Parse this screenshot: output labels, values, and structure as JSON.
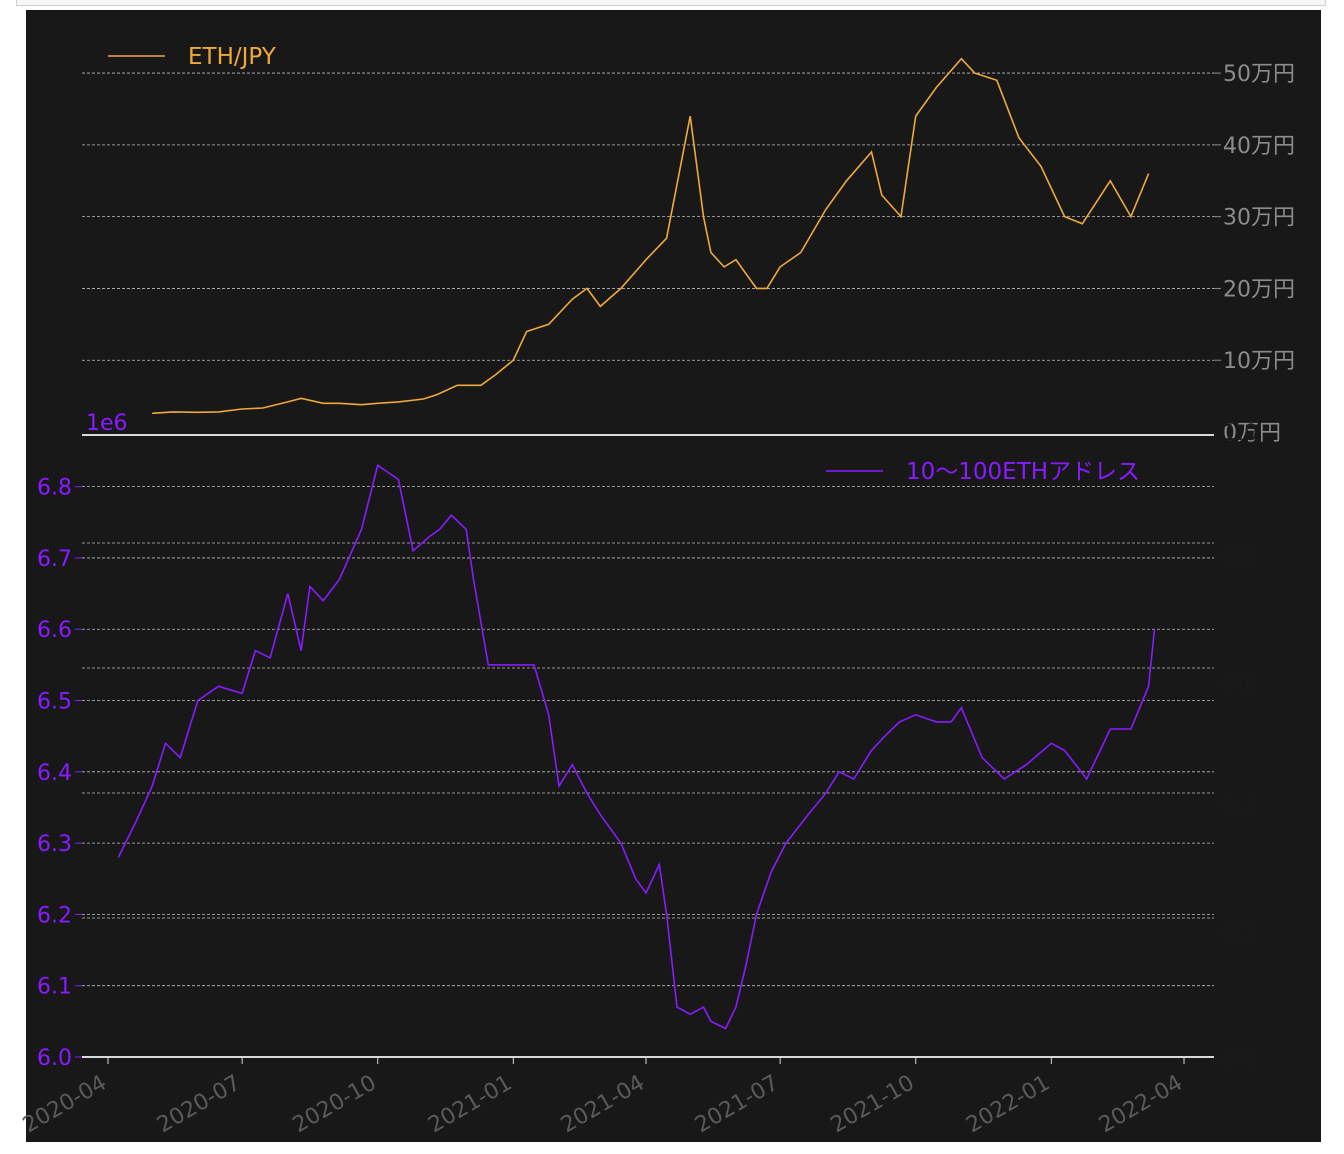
{
  "colors": {
    "background": "#181818",
    "price_line": "#f0a83a",
    "address_line": "#8a1aff",
    "grid": "#bdbdbd",
    "right_tick_text": "#8c8c8c",
    "right_tick_text_dark": "#1a1a1a",
    "x_tick_text": "#5a5a5a",
    "separator": "#d8d8d8"
  },
  "chart_data": [
    {
      "type": "line",
      "panel": "top",
      "legend": {
        "label": "ETH/JPY",
        "placement": "top-left"
      },
      "y_axis": {
        "side": "right",
        "ylim": [
          0,
          560000
        ],
        "ticks": [
          0,
          100000,
          200000,
          300000,
          400000,
          500000
        ],
        "tick_labels": [
          "0万円",
          "10万円",
          "20万円",
          "30万円",
          "40万円",
          "50万円"
        ]
      },
      "grid": true,
      "series": [
        {
          "name": "ETH/JPY",
          "x": [
            "2020-05-01",
            "2020-05-15",
            "2020-06-01",
            "2020-06-15",
            "2020-07-01",
            "2020-07-15",
            "2020-08-01",
            "2020-08-10",
            "2020-08-25",
            "2020-09-05",
            "2020-09-20",
            "2020-10-01",
            "2020-10-15",
            "2020-11-01",
            "2020-11-10",
            "2020-11-24",
            "2020-12-10",
            "2020-12-20",
            "2021-01-01",
            "2021-01-10",
            "2021-01-25",
            "2021-02-10",
            "2021-02-20",
            "2021-03-01",
            "2021-03-15",
            "2021-04-01",
            "2021-04-15",
            "2021-05-01",
            "2021-05-10",
            "2021-05-15",
            "2021-05-24",
            "2021-06-01",
            "2021-06-15",
            "2021-06-22",
            "2021-07-01",
            "2021-07-15",
            "2021-08-01",
            "2021-08-15",
            "2021-09-01",
            "2021-09-08",
            "2021-09-21",
            "2021-10-01",
            "2021-10-15",
            "2021-11-01",
            "2021-11-10",
            "2021-11-25",
            "2021-12-10",
            "2021-12-25",
            "2022-01-10",
            "2022-01-22",
            "2022-02-10",
            "2022-02-24",
            "2022-03-08"
          ],
          "values": [
            26000,
            28000,
            27500,
            28000,
            32000,
            33500,
            42000,
            47000,
            40000,
            40000,
            38000,
            40000,
            42000,
            46000,
            52000,
            65000,
            65000,
            80000,
            100000,
            140000,
            150000,
            185000,
            200000,
            175000,
            200000,
            240000,
            270000,
            440000,
            300000,
            250000,
            230000,
            240000,
            200000,
            200000,
            230000,
            250000,
            310000,
            350000,
            390000,
            330000,
            300000,
            440000,
            480000,
            520000,
            500000,
            490000,
            410000,
            370000,
            300000,
            290000,
            350000,
            300000,
            360000
          ]
        }
      ]
    },
    {
      "type": "line",
      "panel": "bottom",
      "legend": {
        "label": "10〜100ETHアドレス",
        "placement": "top-right"
      },
      "y_axis_left": {
        "scale_label": "1e6",
        "ylim": [
          6.0,
          6.85
        ],
        "ticks": [
          6.0,
          6.1,
          6.2,
          6.3,
          6.4,
          6.5,
          6.6,
          6.7,
          6.8
        ],
        "tick_labels": [
          "6.0",
          "6.1",
          "6.2",
          "6.3",
          "6.4",
          "6.5",
          "6.6",
          "6.7",
          "6.8"
        ]
      },
      "y_axis_right": {
        "ylim": [
          0,
          1.0
        ],
        "ticks": [
          0.0,
          0.2,
          0.4,
          0.6,
          0.8,
          1.0
        ],
        "tick_labels": [
          "0.0",
          "0.2",
          "0.4",
          "0.6",
          "0.8",
          "1.0"
        ]
      },
      "x_axis": {
        "ticks": [
          "2020-04-01",
          "2020-07-01",
          "2020-10-01",
          "2021-01-01",
          "2021-04-01",
          "2021-07-01",
          "2021-10-01",
          "2022-01-01",
          "2022-04-01"
        ],
        "tick_labels": [
          "2020-04",
          "2020-07",
          "2020-10",
          "2021-01",
          "2021-04",
          "2021-07",
          "2021-10",
          "2022-01",
          "2022-04"
        ]
      },
      "grid": true,
      "series": [
        {
          "name": "10〜100ETHアドレス",
          "x": [
            "2020-04-08",
            "2020-04-20",
            "2020-05-01",
            "2020-05-10",
            "2020-05-20",
            "2020-06-01",
            "2020-06-15",
            "2020-07-01",
            "2020-07-10",
            "2020-07-20",
            "2020-08-01",
            "2020-08-10",
            "2020-08-16",
            "2020-08-25",
            "2020-09-05",
            "2020-09-20",
            "2020-10-01",
            "2020-10-15",
            "2020-10-25",
            "2020-11-05",
            "2020-11-12",
            "2020-11-20",
            "2020-11-30",
            "2020-12-05",
            "2020-12-15",
            "2020-12-25",
            "2021-01-01",
            "2021-01-15",
            "2021-01-25",
            "2021-02-01",
            "2021-02-10",
            "2021-02-20",
            "2021-03-01",
            "2021-03-15",
            "2021-03-25",
            "2021-04-01",
            "2021-04-10",
            "2021-04-15",
            "2021-04-22",
            "2021-05-01",
            "2021-05-10",
            "2021-05-15",
            "2021-05-25",
            "2021-06-01",
            "2021-06-08",
            "2021-06-15",
            "2021-06-25",
            "2021-07-05",
            "2021-07-20",
            "2021-08-01",
            "2021-08-10",
            "2021-08-20",
            "2021-09-01",
            "2021-09-10",
            "2021-09-20",
            "2021-10-01",
            "2021-10-15",
            "2021-10-25",
            "2021-11-01",
            "2021-11-15",
            "2021-11-30",
            "2021-12-15",
            "2022-01-01",
            "2022-01-10",
            "2022-01-25",
            "2022-02-10",
            "2022-02-24",
            "2022-03-08",
            "2022-03-12"
          ],
          "values": [
            6.28,
            6.33,
            6.38,
            6.44,
            6.42,
            6.5,
            6.52,
            6.51,
            6.57,
            6.56,
            6.65,
            6.57,
            6.66,
            6.64,
            6.67,
            6.74,
            6.83,
            6.81,
            6.71,
            6.73,
            6.74,
            6.76,
            6.74,
            6.67,
            6.55,
            6.55,
            6.55,
            6.55,
            6.48,
            6.38,
            6.41,
            6.37,
            6.34,
            6.3,
            6.25,
            6.23,
            6.27,
            6.2,
            6.07,
            6.06,
            6.07,
            6.05,
            6.04,
            6.07,
            6.13,
            6.2,
            6.26,
            6.3,
            6.34,
            6.37,
            6.4,
            6.39,
            6.43,
            6.45,
            6.47,
            6.48,
            6.47,
            6.47,
            6.49,
            6.42,
            6.39,
            6.41,
            6.44,
            6.43,
            6.39,
            6.46,
            6.46,
            6.52,
            6.6
          ]
        }
      ]
    }
  ]
}
